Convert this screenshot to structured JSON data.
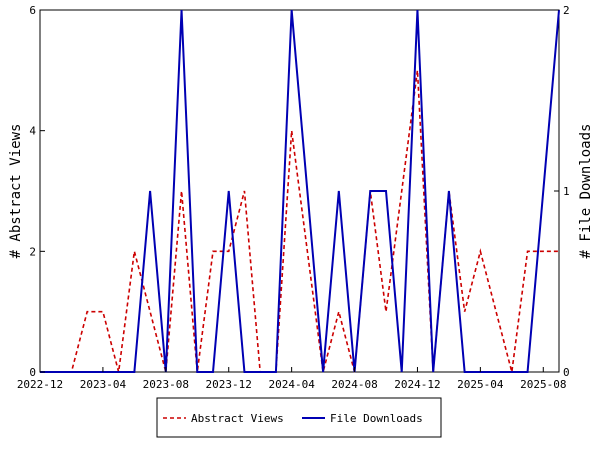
{
  "chart_data": {
    "type": "line",
    "x": [
      "2022-12",
      "2023-01",
      "2023-02",
      "2023-03",
      "2023-04",
      "2023-05",
      "2023-06",
      "2023-07",
      "2023-08",
      "2023-09",
      "2023-10",
      "2023-11",
      "2023-12",
      "2024-01",
      "2024-02",
      "2024-03",
      "2024-04",
      "2024-05",
      "2024-06",
      "2024-07",
      "2024-08",
      "2024-09",
      "2024-10",
      "2024-11",
      "2024-12",
      "2025-01",
      "2025-02",
      "2025-03",
      "2025-04",
      "2025-05",
      "2025-06",
      "2025-07",
      "2025-08",
      "2025-09"
    ],
    "series": [
      {
        "name": "Abstract Views",
        "axis": "left",
        "color": "#cc0000",
        "dash": true,
        "values": [
          0,
          0,
          0,
          1,
          1,
          0,
          2,
          1,
          0,
          3,
          0,
          2,
          2,
          3,
          0,
          0,
          4,
          2,
          0,
          1,
          0,
          3,
          1,
          3,
          5,
          0,
          3,
          1,
          2,
          1,
          0,
          2,
          2,
          2
        ]
      },
      {
        "name": "File Downloads",
        "axis": "right",
        "color": "#0000b3",
        "dash": false,
        "values": [
          0,
          0,
          0,
          0,
          0,
          0,
          0,
          1,
          0,
          2,
          0,
          0,
          1,
          0,
          0,
          0,
          2,
          1,
          0,
          1,
          0,
          1,
          1,
          0,
          2,
          0,
          1,
          0,
          0,
          0,
          0,
          0,
          1,
          2
        ]
      }
    ],
    "x_tick_labels": [
      "2022-12",
      "2023-04",
      "2023-08",
      "2023-12",
      "2024-04",
      "2024-08",
      "2024-12",
      "2025-04",
      "2025-08"
    ],
    "x_tick_every": 4,
    "y_left": {
      "label": "# Abstract Views",
      "ticks": [
        "0",
        "2",
        "4",
        "6"
      ],
      "ylim": [
        0,
        6
      ]
    },
    "y_right": {
      "label": "# File Downloads",
      "ticks": [
        "0",
        "1",
        "2"
      ],
      "ylim": [
        0,
        2
      ]
    },
    "grid": false,
    "legend_position": "bottom"
  },
  "legend": {
    "views_label": "Abstract Views",
    "downloads_label": "File Downloads"
  }
}
